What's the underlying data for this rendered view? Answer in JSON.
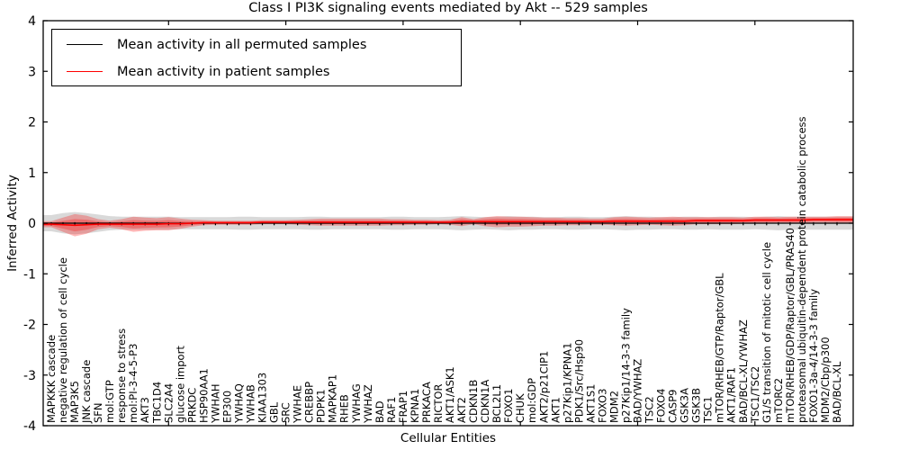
{
  "title": "Class I PI3K signaling events mediated by Akt -- 529 samples",
  "legend": {
    "items": [
      {
        "label": "Mean activity in all permuted samples",
        "color": "#000000"
      },
      {
        "label": "Mean activity in patient samples",
        "color": "#ff0000"
      }
    ]
  },
  "axes": {
    "xlabel": "Cellular Entities",
    "ylabel": "Inferred Activity",
    "ylim": [
      -4,
      4
    ],
    "yticks": [
      4,
      3,
      2,
      1,
      0,
      -1,
      -2,
      -3,
      -4
    ]
  },
  "chart_data": {
    "type": "area",
    "title": "Class I PI3K signaling events mediated by Akt -- 529 samples",
    "xlabel": "Cellular Entities",
    "ylabel": "Inferred Activity",
    "ylim": [
      -4,
      4
    ],
    "grid": false,
    "legend_position": "upper left",
    "categories": [
      "MAPKKK cascade",
      "negative regulation of cell cycle",
      "MAP3K5",
      "JNK cascade",
      "SFN",
      "mol:GTP",
      "response to stress",
      "mol:PI-3-4-5-P3",
      "AKT3",
      "TBC1D4",
      "SLC2A4",
      "glucose import",
      "PRKDC",
      "HSP90AA1",
      "YWHAH",
      "EP300",
      "YWHAQ",
      "YWHAB",
      "KIAA1303",
      "GBL",
      "SRC",
      "YWHAE",
      "CREBBP",
      "PDPK1",
      "MAPKAP1",
      "RHEB",
      "YWHAG",
      "YWHAZ",
      "BAD",
      "RAF1",
      "FRAP1",
      "KPNA1",
      "PRKACA",
      "RICTOR",
      "AKT1/ASK1",
      "AKT2",
      "CDKN1B",
      "CDKN1A",
      "BCL2L1",
      "FOXO1",
      "CHUK",
      "mol:GDP",
      "AKT2/p21CIP1",
      "AKT1",
      "p27Kip1/KPNA1",
      "PDK1/Src/Hsp90",
      "AKT1S1",
      "FOXO3",
      "MDM2",
      "p27Kip1/14-3-3 family",
      "BAD/YWHAZ",
      "TSC2",
      "FOXO4",
      "CASP9",
      "GSK3A",
      "GSK3B",
      "TSC1",
      "mTOR/RHEB/GTP/Raptor/GBL",
      "AKT1/RAF1",
      "BAD/BCL-XL/YWHAZ",
      "TSC1/TSC2",
      "G1/S transition of mitotic cell cycle",
      "mTORC2",
      "mTOR/RHEB/GDP/Raptor/GBL/PRAS40",
      "proteasomal ubiquitin-dependent protein catabolic process",
      "FOXO1-3a-4/14-3-3 family",
      "MDM2/Cbp/p300",
      "BAD/BCL-XL"
    ],
    "series": [
      {
        "name": "Mean activity in all permuted samples",
        "color": "#000000",
        "values": [
          0,
          0,
          0,
          0,
          0,
          0,
          0,
          0,
          0,
          0,
          0,
          0,
          0,
          0,
          0,
          0,
          0,
          0,
          0,
          0,
          0,
          0,
          0,
          0,
          0,
          0,
          0,
          0,
          0,
          0,
          0,
          0,
          0,
          0,
          0,
          0,
          0,
          0,
          0,
          0,
          0,
          0,
          0,
          0,
          0,
          0,
          0,
          0,
          0,
          0,
          0,
          0,
          0,
          0,
          0,
          0,
          0,
          0,
          0,
          0,
          0,
          0,
          0,
          0,
          0,
          0,
          0,
          0
        ]
      },
      {
        "name": "Mean activity in patient samples",
        "color": "#ff0000",
        "values": [
          -0.02,
          -0.03,
          -0.04,
          -0.03,
          -0.02,
          -0.02,
          -0.02,
          -0.02,
          -0.02,
          -0.02,
          -0.01,
          -0.01,
          0,
          0.01,
          0.01,
          0.01,
          0.01,
          0.01,
          0.02,
          0.02,
          0.02,
          0.02,
          0.02,
          0.02,
          0.02,
          0.02,
          0.02,
          0.02,
          0.02,
          0.02,
          0.02,
          0.02,
          0.02,
          0.02,
          0.02,
          0.03,
          0.03,
          0.03,
          0.03,
          0.03,
          0.03,
          0.03,
          0.03,
          0.03,
          0.03,
          0.03,
          0.03,
          0.03,
          0.04,
          0.04,
          0.04,
          0.04,
          0.04,
          0.04,
          0.04,
          0.05,
          0.05,
          0.05,
          0.05,
          0.05,
          0.06,
          0.06,
          0.06,
          0.06,
          0.06,
          0.07,
          0.07,
          0.07
        ]
      }
    ],
    "bands": [
      {
        "name": "permuted samples spread",
        "color": "rgba(0,0,0,0.15)",
        "center": "Mean activity in all permuted samples",
        "halfwidths": [
          0.16,
          0.2,
          0.22,
          0.2,
          0.17,
          0.14,
          0.13,
          0.13,
          0.13,
          0.13,
          0.13,
          0.12,
          0.12,
          0.12,
          0.12,
          0.12,
          0.13,
          0.13,
          0.12,
          0.12,
          0.12,
          0.12,
          0.13,
          0.13,
          0.12,
          0.12,
          0.12,
          0.12,
          0.12,
          0.13,
          0.13,
          0.12,
          0.12,
          0.12,
          0.13,
          0.14,
          0.13,
          0.12,
          0.13,
          0.14,
          0.13,
          0.13,
          0.12,
          0.12,
          0.13,
          0.13,
          0.12,
          0.12,
          0.13,
          0.14,
          0.13,
          0.13,
          0.12,
          0.12,
          0.13,
          0.13,
          0.12,
          0.13,
          0.13,
          0.13,
          0.12,
          0.13,
          0.14,
          0.13,
          0.13,
          0.13,
          0.13,
          0.13
        ]
      },
      {
        "name": "patient samples spread",
        "color": "rgba(255,0,0,0.28)",
        "center": "Mean activity in patient samples",
        "halfwidths": [
          0.06,
          0.14,
          0.22,
          0.18,
          0.1,
          0.07,
          0.1,
          0.15,
          0.13,
          0.12,
          0.13,
          0.1,
          0.07,
          0.05,
          0.04,
          0.04,
          0.04,
          0.04,
          0.04,
          0.04,
          0.04,
          0.05,
          0.06,
          0.07,
          0.07,
          0.07,
          0.07,
          0.07,
          0.07,
          0.06,
          0.06,
          0.05,
          0.05,
          0.04,
          0.05,
          0.09,
          0.05,
          0.09,
          0.11,
          0.1,
          0.1,
          0.09,
          0.08,
          0.08,
          0.07,
          0.07,
          0.06,
          0.06,
          0.08,
          0.09,
          0.08,
          0.07,
          0.08,
          0.09,
          0.08,
          0.07,
          0.07,
          0.07,
          0.07,
          0.06,
          0.07,
          0.07,
          0.06,
          0.07,
          0.07,
          0.06,
          0.06,
          0.07
        ]
      }
    ]
  }
}
